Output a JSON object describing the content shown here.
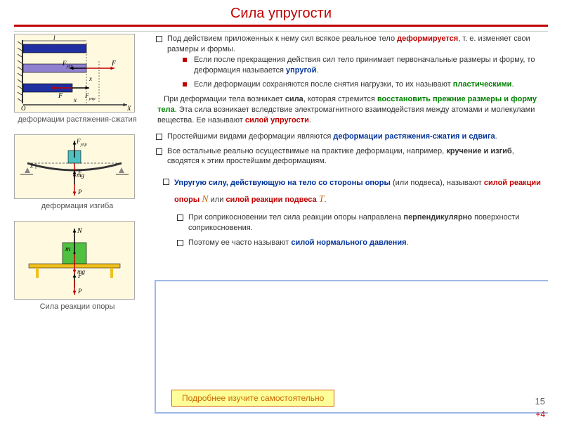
{
  "title": "Сила упругости",
  "left": {
    "cap1": "деформации растяжения-сжатия",
    "cap2": "деформация изгиба",
    "cap3": "Сила реакции опоры"
  },
  "b1": {
    "p1a": "Под действием приложенных к нему сил всякое реальное тело ",
    "p1b": "деформируется",
    "p1c": ", т. е. изменяет свои размеры и формы.",
    "s1a": "Если после прекращения действия сил тело принимает первоначальные размеры и форму, то деформация называется ",
    "s1b": "упругой",
    "s1c": ".",
    "s2a": "Если деформации сохраняются после снятия нагрузки, то их называют ",
    "s2b": "пластическими",
    "s2c": "."
  },
  "para2": {
    "a": "При деформации тела возникает ",
    "b": "сила",
    "c": ", которая стремится ",
    "d": "восстановить прежние размеры и форму тела",
    "e": ". Эта сила возникает вследствие электромагнитного взаимодействия между атомами и молекулами вещества. Ее называют ",
    "f": "силой упругости",
    "g": "."
  },
  "b2": {
    "p1a": "Простейшими видами деформации являются ",
    "p1b": "деформации растяжения-сжатия и сдвига",
    "p1c": ".",
    "p2a": "Все остальные реально осуществимые на практике деформации, например, ",
    "p2b": "кручение и изгиб",
    "p2c": ", сводятся к этим простейшим деформациям."
  },
  "b3": {
    "p1a": "Упругую силу, действующую на тело со стороны опоры",
    "p1b": " (или подвеса), называют ",
    "p1c": "силой реакции опоры ",
    "p1d": "N",
    "p1e": " или ",
    "p1f": "силой реакции подвеса ",
    "p1g": "T",
    "p1h": ".",
    "s1a": "При соприкосновении тел сила реакции опоры направлена ",
    "s1b": "перпендикулярно",
    "s1c": " поверхности соприкосновения.",
    "s2a": "Поэтому ее часто называют ",
    "s2b": "силой нормального давления",
    "s2c": "."
  },
  "selfStudy": "Подробнее изучите самостоятельно",
  "pageNum": "15",
  "plus4": "+4",
  "diagrams": {
    "d1": {
      "bg": "#fff9e0",
      "bar_colors": [
        "#2030a0",
        "#9080d0",
        "#2030a0"
      ],
      "arrow": "#c00000",
      "axis": "#333",
      "axis_label_x": "X",
      "label_l": "l",
      "label_F": "F",
      "label_Fupr": "F",
      "sub_upr": "упр",
      "label_x": "x",
      "label_O": "O"
    },
    "d2": {
      "bg": "#fff9e0",
      "beam": "#333",
      "block": "#4fc0c0",
      "arrow": "#c00000",
      "label_mg": "mg",
      "label_Fupr": "F",
      "sub_upr": "упр",
      "label_x": "x",
      "label_F": "F",
      "label_P": "P"
    },
    "d3": {
      "bg": "#fff9e0",
      "table": "#f0c020",
      "block": "#4fc040",
      "arrow_up": "#000",
      "arrow_down": "#c00000",
      "label_N": "N",
      "label_mg": "mg",
      "label_m": "m",
      "label_P": "P"
    }
  }
}
